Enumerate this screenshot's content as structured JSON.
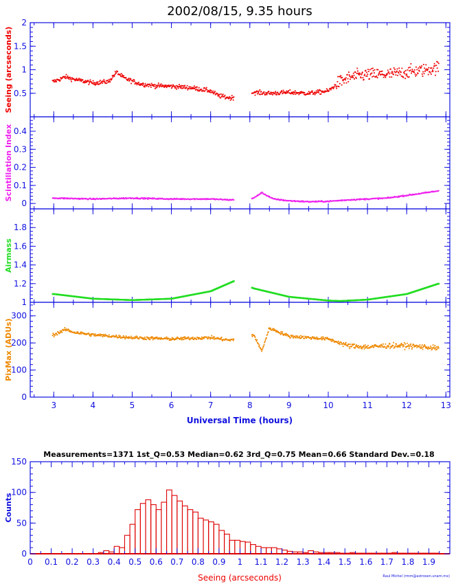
{
  "title": "2002/08/15, 9.35 hours",
  "timeseries": {
    "xlabel": "Universal Time (hours)",
    "xlim": [
      2.4,
      13.1
    ],
    "xticks": [
      "3",
      "4",
      "5",
      "6",
      "7",
      "8",
      "9",
      "10",
      "11",
      "12",
      "13"
    ],
    "panels": [
      {
        "key": "seeing",
        "ylabel": "Seeing (arcseconds)",
        "color": "#ee0000",
        "ylim": [
          0,
          2
        ],
        "yticks": [
          "0.5",
          "1",
          "1.5",
          "2"
        ],
        "tickvals": [
          0.5,
          1,
          1.5,
          2
        ]
      },
      {
        "key": "scint",
        "ylabel": "Scintillation Index",
        "color": "#ee22ee",
        "ylim": [
          -0.03,
          0.48
        ],
        "yticks": [
          "0",
          "0.1",
          "0.2",
          "0.3",
          "0.4"
        ],
        "tickvals": [
          0,
          0.1,
          0.2,
          0.3,
          0.4
        ]
      },
      {
        "key": "airmass",
        "ylabel": "Airmass",
        "color": "#22dd22",
        "ylim": [
          1.0,
          2.0
        ],
        "yticks": [
          "1",
          "1.2",
          "1.4",
          "1.6",
          "1.8"
        ],
        "tickvals": [
          1,
          1.2,
          1.4,
          1.6,
          1.8
        ]
      },
      {
        "key": "pixmax",
        "ylabel": "PixMax (ADUs)",
        "color": "#ee8800",
        "ylim": [
          0,
          350
        ],
        "yticks": [
          "0",
          "100",
          "200",
          "300"
        ],
        "tickvals": [
          0,
          100,
          200,
          300
        ]
      }
    ]
  },
  "histogram": {
    "stats_text": "Measurements=1371   1st_Q=0.53   Median=0.62   3rd_Q=0.75   Mean=0.66   Standard Dev.=0.18",
    "xlabel": "Seeing (arcseconds)",
    "ylabel": "Counts",
    "xlim": [
      0,
      2
    ],
    "ylim": [
      0,
      150
    ],
    "xticks": [
      "0",
      "0.1",
      "0.2",
      "0.3",
      "0.4",
      "0.5",
      "0.6",
      "0.7",
      "0.8",
      "0.9",
      "1",
      "1.1",
      "1.2",
      "1.3",
      "1.4",
      "1.5",
      "1.6",
      "1.7",
      "1.8",
      "1.9"
    ],
    "yticks": [
      "0",
      "50",
      "100",
      "150"
    ],
    "color": "#dd0000",
    "credit": "Raul Michel (rmm@astrosen.unam.mx)"
  },
  "chart_data": [
    {
      "type": "scatter",
      "title": "2002/08/15, 9.35 hours",
      "xlabel": "Universal Time (hours)",
      "ylabel": "Seeing (arcseconds)",
      "ylim": [
        0,
        2
      ],
      "series": [
        {
          "x": [
            3.0,
            3.3,
            3.5,
            4.0,
            4.4,
            4.6,
            4.8,
            5.2,
            5.6,
            6.0,
            6.5,
            7.0,
            7.2,
            7.5,
            8.1,
            8.5,
            9.0,
            9.5,
            10.0,
            10.3,
            10.6,
            11.0,
            11.5,
            12.0,
            12.5,
            12.8
          ],
          "y": [
            0.75,
            0.85,
            0.8,
            0.72,
            0.75,
            0.95,
            0.82,
            0.7,
            0.66,
            0.65,
            0.62,
            0.55,
            0.45,
            0.4,
            0.52,
            0.5,
            0.52,
            0.5,
            0.55,
            0.75,
            0.85,
            0.9,
            0.9,
            0.95,
            1.0,
            1.05
          ]
        }
      ]
    },
    {
      "type": "scatter",
      "xlabel": "Universal Time (hours)",
      "ylabel": "Scintillation Index",
      "ylim": [
        -0.03,
        0.48
      ],
      "series": [
        {
          "x": [
            3.0,
            4.0,
            5.0,
            6.0,
            7.0,
            7.5,
            8.1,
            8.3,
            8.6,
            9.0,
            9.5,
            10.0,
            10.5,
            11.0,
            11.5,
            12.0,
            12.5,
            12.8
          ],
          "y": [
            0.03,
            0.025,
            0.03,
            0.025,
            0.025,
            0.02,
            0.03,
            0.06,
            0.025,
            0.015,
            0.01,
            0.012,
            0.02,
            0.025,
            0.03,
            0.045,
            0.06,
            0.07
          ]
        }
      ]
    },
    {
      "type": "line",
      "xlabel": "Universal Time (hours)",
      "ylabel": "Airmass",
      "ylim": [
        1.0,
        2.0
      ],
      "series": [
        {
          "x": [
            3.0,
            4.0,
            5.0,
            6.0,
            7.0,
            7.6,
            8.1,
            9.0,
            10.0,
            10.3,
            11.0,
            12.0,
            12.8
          ],
          "y": [
            1.09,
            1.04,
            1.025,
            1.04,
            1.12,
            1.23,
            1.15,
            1.06,
            1.02,
            1.015,
            1.03,
            1.09,
            1.2
          ]
        }
      ]
    },
    {
      "type": "scatter",
      "xlabel": "Universal Time (hours)",
      "ylabel": "PixMax (ADUs)",
      "ylim": [
        0,
        350
      ],
      "series": [
        {
          "x": [
            3.0,
            3.3,
            3.5,
            4.0,
            5.0,
            6.0,
            7.0,
            7.5,
            8.1,
            8.3,
            8.5,
            9.0,
            9.5,
            10.0,
            10.5,
            11.0,
            11.5,
            12.0,
            12.5,
            12.8
          ],
          "y": [
            230,
            250,
            240,
            230,
            220,
            215,
            220,
            210,
            230,
            170,
            255,
            225,
            220,
            215,
            190,
            185,
            190,
            190,
            185,
            180
          ]
        }
      ]
    },
    {
      "type": "bar",
      "title": "Measurements=1371   1st_Q=0.53   Median=0.62   3rd_Q=0.75   Mean=0.66   Standard Dev.=0.18",
      "xlabel": "Seeing (arcseconds)",
      "ylabel": "Counts",
      "ylim": [
        0,
        150
      ],
      "bin_width": 0.025,
      "bin_start": 0.325,
      "values": [
        2,
        5,
        3,
        12,
        10,
        30,
        48,
        72,
        82,
        88,
        80,
        72,
        84,
        104,
        95,
        86,
        78,
        72,
        68,
        58,
        55,
        52,
        48,
        38,
        32,
        22,
        22,
        20,
        19,
        15,
        12,
        10,
        10,
        10,
        8,
        6,
        4,
        3,
        3,
        2,
        5,
        3,
        2,
        2,
        2,
        2,
        1,
        1,
        2,
        1,
        1,
        1,
        1,
        1,
        1,
        1,
        2,
        1,
        1,
        1,
        1,
        1,
        1,
        1,
        1
      ]
    }
  ]
}
